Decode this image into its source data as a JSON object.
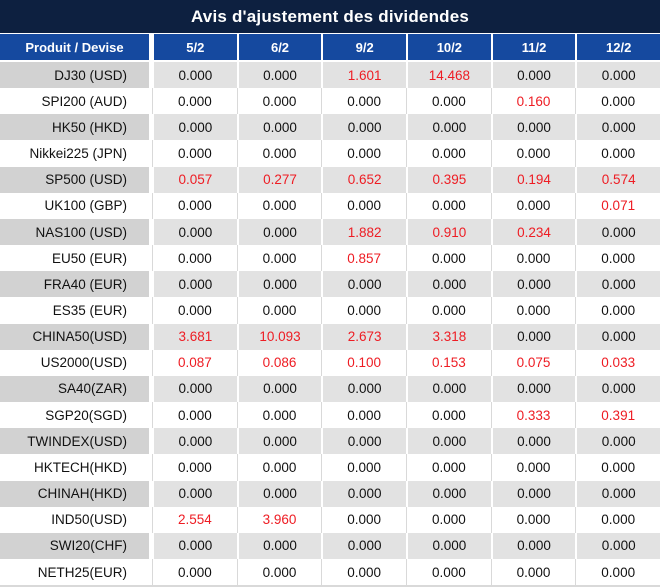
{
  "title": "Avis d'ajustement des dividendes",
  "colors": {
    "title_bg": "#0d2040",
    "header_bg": "#15499f",
    "header_text": "#ffffff",
    "gray_label": "#d2d2d2",
    "gray_value": "#e2e2e2",
    "value_text": "#111111",
    "red": "#ee1c23"
  },
  "table": {
    "label_header": "Produit / Devise",
    "date_headers": [
      "5/2",
      "6/2",
      "9/2",
      "10/2",
      "11/2",
      "12/2"
    ],
    "rows": [
      {
        "label": "DJ30 (USD)",
        "values": [
          "0.000",
          "0.000",
          "1.601",
          "14.468",
          "0.000",
          "0.000"
        ],
        "red": [
          false,
          false,
          true,
          true,
          false,
          false
        ]
      },
      {
        "label": "SPI200 (AUD)",
        "values": [
          "0.000",
          "0.000",
          "0.000",
          "0.000",
          "0.160",
          "0.000"
        ],
        "red": [
          false,
          false,
          false,
          false,
          true,
          false
        ]
      },
      {
        "label": "HK50 (HKD)",
        "values": [
          "0.000",
          "0.000",
          "0.000",
          "0.000",
          "0.000",
          "0.000"
        ],
        "red": [
          false,
          false,
          false,
          false,
          false,
          false
        ]
      },
      {
        "label": "Nikkei225 (JPN)",
        "values": [
          "0.000",
          "0.000",
          "0.000",
          "0.000",
          "0.000",
          "0.000"
        ],
        "red": [
          false,
          false,
          false,
          false,
          false,
          false
        ]
      },
      {
        "label": "SP500 (USD)",
        "values": [
          "0.057",
          "0.277",
          "0.652",
          "0.395",
          "0.194",
          "0.574"
        ],
        "red": [
          true,
          true,
          true,
          true,
          true,
          true
        ]
      },
      {
        "label": "UK100 (GBP)",
        "values": [
          "0.000",
          "0.000",
          "0.000",
          "0.000",
          "0.000",
          "0.071"
        ],
        "red": [
          false,
          false,
          false,
          false,
          false,
          true
        ]
      },
      {
        "label": "NAS100 (USD)",
        "values": [
          "0.000",
          "0.000",
          "1.882",
          "0.910",
          "0.234",
          "0.000"
        ],
        "red": [
          false,
          false,
          true,
          true,
          true,
          false
        ]
      },
      {
        "label": "EU50 (EUR)",
        "values": [
          "0.000",
          "0.000",
          "0.857",
          "0.000",
          "0.000",
          "0.000"
        ],
        "red": [
          false,
          false,
          true,
          false,
          false,
          false
        ]
      },
      {
        "label": "FRA40 (EUR)",
        "values": [
          "0.000",
          "0.000",
          "0.000",
          "0.000",
          "0.000",
          "0.000"
        ],
        "red": [
          false,
          false,
          false,
          false,
          false,
          false
        ]
      },
      {
        "label": "ES35 (EUR)",
        "values": [
          "0.000",
          "0.000",
          "0.000",
          "0.000",
          "0.000",
          "0.000"
        ],
        "red": [
          false,
          false,
          false,
          false,
          false,
          false
        ]
      },
      {
        "label": "CHINA50(USD)",
        "values": [
          "3.681",
          "10.093",
          "2.673",
          "3.318",
          "0.000",
          "0.000"
        ],
        "red": [
          true,
          true,
          true,
          true,
          false,
          false
        ]
      },
      {
        "label": "US2000(USD)",
        "values": [
          "0.087",
          "0.086",
          "0.100",
          "0.153",
          "0.075",
          "0.033"
        ],
        "red": [
          true,
          true,
          true,
          true,
          true,
          true
        ]
      },
      {
        "label": "SA40(ZAR)",
        "values": [
          "0.000",
          "0.000",
          "0.000",
          "0.000",
          "0.000",
          "0.000"
        ],
        "red": [
          false,
          false,
          false,
          false,
          false,
          false
        ]
      },
      {
        "label": "SGP20(SGD)",
        "values": [
          "0.000",
          "0.000",
          "0.000",
          "0.000",
          "0.333",
          "0.391"
        ],
        "red": [
          false,
          false,
          false,
          false,
          true,
          true
        ]
      },
      {
        "label": "TWINDEX(USD)",
        "values": [
          "0.000",
          "0.000",
          "0.000",
          "0.000",
          "0.000",
          "0.000"
        ],
        "red": [
          false,
          false,
          false,
          false,
          false,
          false
        ]
      },
      {
        "label": "HKTECH(HKD)",
        "values": [
          "0.000",
          "0.000",
          "0.000",
          "0.000",
          "0.000",
          "0.000"
        ],
        "red": [
          false,
          false,
          false,
          false,
          false,
          false
        ]
      },
      {
        "label": "CHINAH(HKD)",
        "values": [
          "0.000",
          "0.000",
          "0.000",
          "0.000",
          "0.000",
          "0.000"
        ],
        "red": [
          false,
          false,
          false,
          false,
          false,
          false
        ]
      },
      {
        "label": "IND50(USD)",
        "values": [
          "2.554",
          "3.960",
          "0.000",
          "0.000",
          "0.000",
          "0.000"
        ],
        "red": [
          true,
          true,
          false,
          false,
          false,
          false
        ]
      },
      {
        "label": "SWI20(CHF)",
        "values": [
          "0.000",
          "0.000",
          "0.000",
          "0.000",
          "0.000",
          "0.000"
        ],
        "red": [
          false,
          false,
          false,
          false,
          false,
          false
        ]
      },
      {
        "label": "NETH25(EUR)",
        "values": [
          "0.000",
          "0.000",
          "0.000",
          "0.000",
          "0.000",
          "0.000"
        ],
        "red": [
          false,
          false,
          false,
          false,
          false,
          false
        ]
      }
    ]
  }
}
